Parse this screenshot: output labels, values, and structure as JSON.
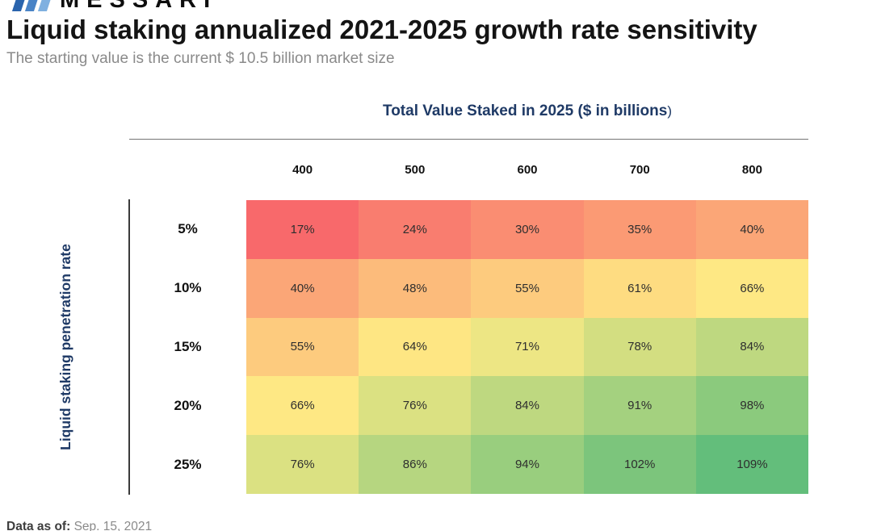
{
  "page": {
    "logo_text": "MESSARI",
    "title": "Liquid staking annualized 2021-2025 growth rate sensitivity",
    "subtitle": "The starting value is the current $ 10.5 billion market size",
    "footer_label": "Data as of:",
    "footer_value": "Sep. 15, 2021"
  },
  "x_axis": {
    "label_main": "Total Value Staked in 2025 ($ in billions",
    "label_paren": ")"
  },
  "chart_data": {
    "type": "heatmap",
    "title": "Liquid staking annualized 2021-2025 growth rate sensitivity",
    "subtitle": "The starting value is the current $ 10.5 billion market size",
    "x_axis_label": "Total Value Staked in 2025 ($ in billions)",
    "y_axis_label": "Liquid staking penetration rate",
    "columns": [
      "400",
      "500",
      "600",
      "700",
      "800"
    ],
    "rows": [
      "5%",
      "10%",
      "15%",
      "20%",
      "25%"
    ],
    "values": [
      [
        "17%",
        "24%",
        "30%",
        "35%",
        "40%"
      ],
      [
        "40%",
        "48%",
        "55%",
        "61%",
        "66%"
      ],
      [
        "55%",
        "64%",
        "71%",
        "78%",
        "84%"
      ],
      [
        "66%",
        "76%",
        "84%",
        "91%",
        "98%"
      ],
      [
        "76%",
        "86%",
        "94%",
        "102%",
        "109%"
      ]
    ],
    "colors": [
      [
        "#F8696B",
        "#F97D6F",
        "#FA8D72",
        "#FB9A74",
        "#FBA677"
      ],
      [
        "#FBA677",
        "#FCBB7B",
        "#FDCB7E",
        "#FEDC81",
        "#FEE884"
      ],
      [
        "#FDCB7E",
        "#FEE683",
        "#EDE684",
        "#D3DE81",
        "#BED880"
      ],
      [
        "#FEE884",
        "#DBE182",
        "#BED880",
        "#A4D17F",
        "#8BCA7D"
      ],
      [
        "#DBE182",
        "#B6D680",
        "#99CE7E",
        "#7CC57C",
        "#63BE7B"
      ]
    ],
    "colormap": "red-yellow-green",
    "color_scale": {
      "min": "#F8696B",
      "mid": "#FFEB84",
      "max": "#63BE7B"
    },
    "legend": "none",
    "grid": false,
    "data_source_note": "Data as of: Sep. 15, 2021",
    "brand_colors": [
      "#2a64ad",
      "#4983c6",
      "#7fb0e0"
    ]
  }
}
